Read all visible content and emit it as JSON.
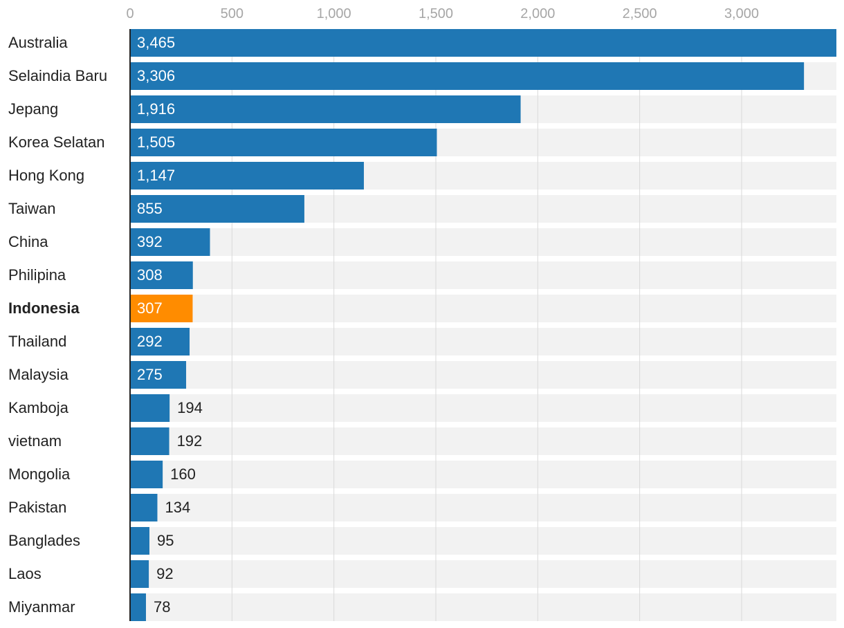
{
  "chart_data": {
    "type": "bar",
    "orientation": "horizontal",
    "categories": [
      "Australia",
      "Selaindia Baru",
      "Jepang",
      "Korea Selatan",
      "Hong Kong",
      "Taiwan",
      "China",
      "Philipina",
      "Indonesia",
      "Thailand",
      "Malaysia",
      "Kamboja",
      "vietnam",
      "Mongolia",
      "Pakistan",
      "Banglades",
      "Laos",
      "Miyanmar"
    ],
    "values": [
      3465,
      3306,
      1916,
      1505,
      1147,
      855,
      392,
      308,
      307,
      292,
      275,
      194,
      192,
      160,
      134,
      95,
      92,
      78
    ],
    "value_labels": [
      "3,465",
      "3,306",
      "1,916",
      "1,505",
      "1,147",
      "855",
      "392",
      "308",
      "307",
      "292",
      "275",
      "194",
      "192",
      "160",
      "134",
      "95",
      "92",
      "78"
    ],
    "highlight_category": "Indonesia",
    "xlim": [
      0,
      3465
    ],
    "xticks": [
      0,
      500,
      1000,
      1500,
      2000,
      2500,
      3000
    ],
    "xtick_labels": [
      "0",
      "500",
      "1,000",
      "1,500",
      "2,000",
      "2,500",
      "3,000"
    ],
    "axis_position": "top",
    "grid": true,
    "colors": {
      "bar": "#1f77b4",
      "highlight": "#ff8c00",
      "track": "#f2f2f2",
      "grid": "#d9d9d9",
      "axis": "#222222",
      "tick_text": "#a6a6a6",
      "label_text": "#222222",
      "inside_label": "#ffffff"
    }
  }
}
